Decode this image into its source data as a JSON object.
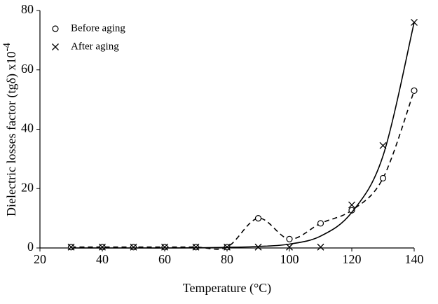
{
  "chart_data": {
    "type": "scatter",
    "x_label": "Temperature (°C)",
    "y_label": "Dielectric losses factor (tgδ) x10",
    "y_label_sup": "-4",
    "x": [
      30,
      40,
      50,
      60,
      70,
      80,
      90,
      100,
      110,
      120,
      130,
      140
    ],
    "series": [
      {
        "name": "Before aging",
        "color": "#000000",
        "marker": "circle",
        "line": "dashed",
        "values": [
          0.3,
          0.3,
          0.3,
          0.3,
          0.3,
          0.3,
          10,
          3,
          8.3,
          12.7,
          23.5,
          53
        ],
        "line_values": [
          0.3,
          0.3,
          0.3,
          0.3,
          0.3,
          0.3,
          10,
          3,
          8.3,
          12.7,
          23.5,
          53
        ]
      },
      {
        "name": "After aging",
        "color": "#000000",
        "marker": "cross",
        "line": "solid",
        "values": [
          0.3,
          0.3,
          0.3,
          0.3,
          0.3,
          0.3,
          0.3,
          0.3,
          0.3,
          14.5,
          34.5,
          76
        ],
        "line_values": [
          0,
          0,
          0,
          0,
          0.05,
          0.2,
          0.5,
          1.3,
          4,
          12,
          31,
          76
        ]
      }
    ],
    "xlim": [
      20,
      140
    ],
    "xticks": [
      20,
      40,
      60,
      80,
      100,
      120,
      140
    ],
    "ylim": [
      0,
      80
    ],
    "yticks": [
      0,
      20,
      40,
      60,
      80
    ],
    "grid": false,
    "legend": "upper left"
  }
}
